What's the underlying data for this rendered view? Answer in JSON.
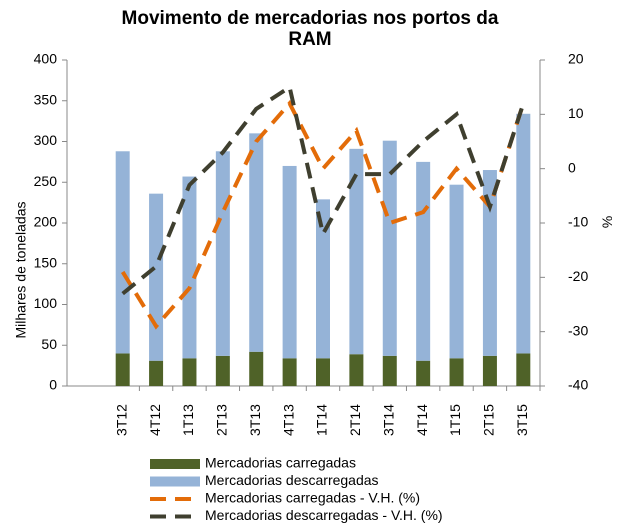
{
  "chart_data": {
    "type": "bar",
    "title": "Movimento de mercadorias nos portos da RAM",
    "ylabel": "Milhares de toneladas",
    "y2label": "%",
    "categories": [
      "3T12",
      "4T12",
      "1T13",
      "2T13",
      "3T13",
      "4T13",
      "1T14",
      "2T14",
      "3T14",
      "4T14",
      "1T15",
      "2T15",
      "3T15"
    ],
    "series": [
      {
        "name": "Mercadorias carregadas",
        "type": "bar",
        "color": "#4f6228",
        "values": [
          40,
          31,
          34,
          37,
          42,
          34,
          34,
          39,
          37,
          31,
          34,
          37,
          40
        ]
      },
      {
        "name": "Mercadorias descarregadas",
        "type": "bar",
        "color": "#95b3d7",
        "values": [
          248,
          205,
          223,
          251,
          268,
          236,
          195,
          252,
          264,
          244,
          213,
          228,
          294
        ]
      },
      {
        "name": "Mercadorias carregadas - V.H. (%)",
        "type": "line",
        "axis": "y2",
        "color": "#e36c09",
        "values": [
          -19,
          -29,
          -22,
          -8,
          5,
          12,
          0,
          7,
          -10,
          -8,
          0,
          -7,
          12
        ]
      },
      {
        "name": "Mercadorias descarregadas - V.H. (%)",
        "type": "line",
        "axis": "y2",
        "color": "#3f3f2f",
        "values": [
          -23,
          -18,
          -3,
          3,
          11,
          15,
          -12,
          -1,
          -1,
          5,
          10,
          -7,
          12
        ]
      }
    ],
    "ylim": [
      0,
      400
    ],
    "yticks": [
      0,
      50,
      100,
      150,
      200,
      250,
      300,
      350,
      400
    ],
    "y2lim": [
      -40,
      20
    ],
    "y2ticks": [
      -40,
      -30,
      -20,
      -10,
      0,
      10,
      20
    ],
    "stacked": true
  }
}
